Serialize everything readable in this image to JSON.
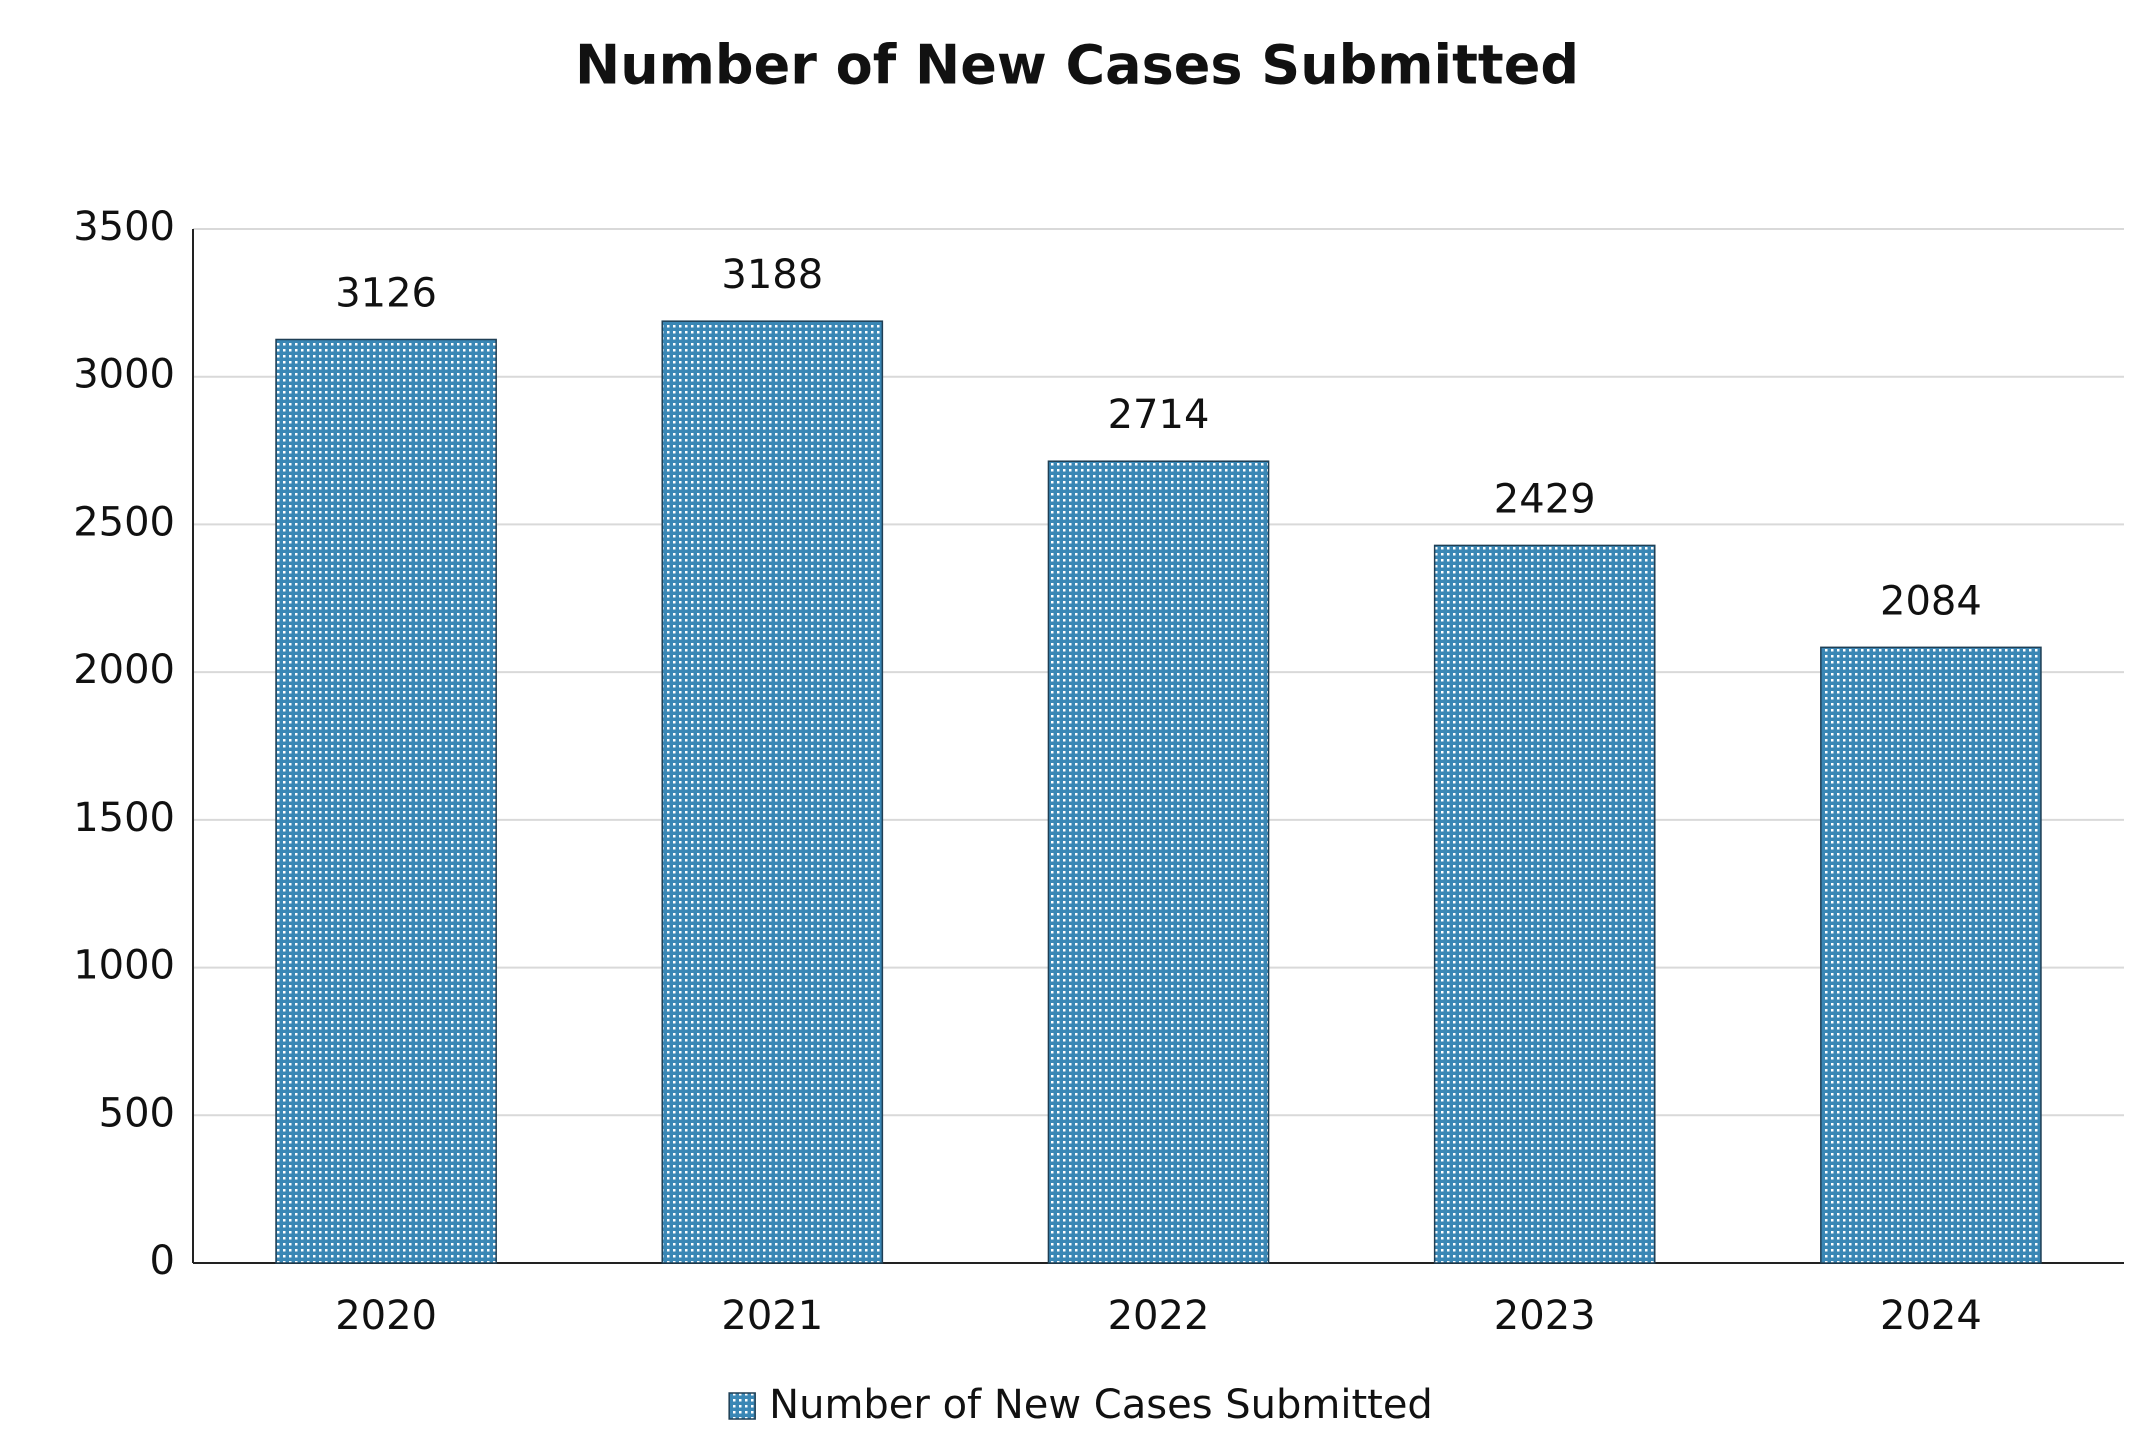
{
  "chart_data": {
    "type": "bar",
    "title": "Number of New Cases Submitted",
    "categories": [
      "2020",
      "2021",
      "2022",
      "2023",
      "2024"
    ],
    "series": [
      {
        "name": "Number of New Cases Submitted",
        "color": "#3a87b5",
        "values": [
          3126,
          3188,
          2714,
          2429,
          2084
        ]
      }
    ],
    "ylim": [
      0,
      3500
    ],
    "yticks": [
      0,
      500,
      1000,
      1500,
      2000,
      2500,
      3000,
      3500
    ],
    "grid": true,
    "legend": "bottom"
  }
}
